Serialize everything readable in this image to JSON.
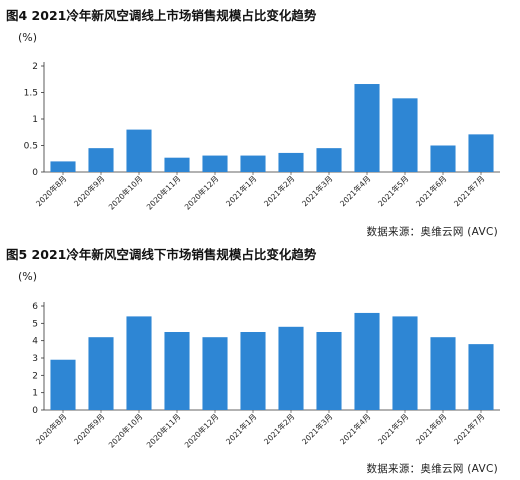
{
  "colors": {
    "bar": "#2e86d4",
    "axis": "#333333"
  },
  "chart_data": [
    {
      "type": "bar",
      "title": "图4  2021冷年新风空调线上市场销售规模占比变化趋势",
      "ylabel": "(%)",
      "source": "数据来源：奥维云网 (AVC)",
      "categories": [
        "2020年8月",
        "2020年9月",
        "2020年10月",
        "2020年11月",
        "2020年12月",
        "2021年1月",
        "2021年2月",
        "2021年3月",
        "2021年4月",
        "2021年5月",
        "2021年6月",
        "2021年7月"
      ],
      "values": [
        0.2,
        0.45,
        0.8,
        0.27,
        0.31,
        0.31,
        0.36,
        0.45,
        1.66,
        1.39,
        0.5,
        0.71
      ],
      "ylim": [
        0,
        2
      ],
      "yticks": [
        "0",
        "0.5",
        "1",
        "1.5",
        "2"
      ],
      "ytick_values": [
        0,
        0.5,
        1,
        1.5,
        2
      ],
      "grid": false
    },
    {
      "type": "bar",
      "title": "图5  2021冷年新风空调线下市场销售规模占比变化趋势",
      "ylabel": "(%)",
      "source": "数据来源：奥维云网 (AVC)",
      "categories": [
        "2020年8月",
        "2020年9月",
        "2020年10月",
        "2020年11月",
        "2020年12月",
        "2021年1月",
        "2021年2月",
        "2021年3月",
        "2021年4月",
        "2021年5月",
        "2021年6月",
        "2021年7月"
      ],
      "values": [
        2.9,
        4.2,
        5.4,
        4.5,
        4.2,
        4.5,
        4.8,
        4.5,
        5.6,
        5.4,
        4.2,
        3.8
      ],
      "ylim": [
        0,
        6
      ],
      "yticks": [
        "0",
        "1",
        "2",
        "3",
        "4",
        "5",
        "6"
      ],
      "ytick_values": [
        0,
        1,
        2,
        3,
        4,
        5,
        6
      ],
      "grid": false
    }
  ]
}
